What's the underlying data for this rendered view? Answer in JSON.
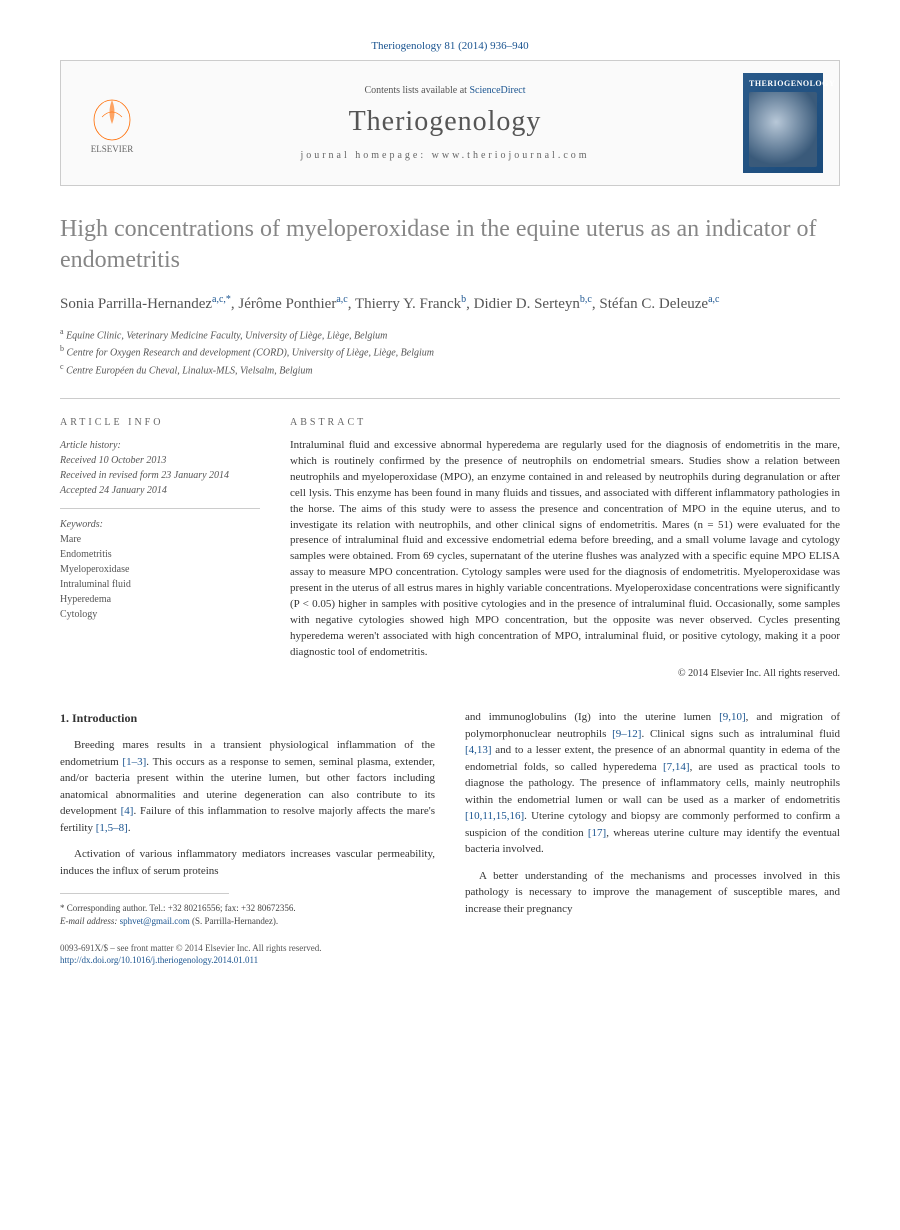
{
  "citation": "Theriogenology 81 (2014) 936–940",
  "header": {
    "contents_prefix": "Contents lists available at ",
    "contents_link": "ScienceDirect",
    "journal_name": "Theriogenology",
    "homepage_prefix": "journal homepage: ",
    "homepage_url": "www.theriojournal.com",
    "elsevier_brand": "ELSEVIER",
    "cover_title": "THERIOGENOLOGY"
  },
  "title": "High concentrations of myeloperoxidase in the equine uterus as an indicator of endometritis",
  "authors_html": "Sonia Parrilla-Hernandez|a,c,*|, Jérôme Ponthier|a,c|, Thierry Y. Franck|b|, Didier D. Serteyn|b,c|, Stéfan C. Deleuze|a,c|",
  "affiliations": [
    {
      "sup": "a",
      "text": "Equine Clinic, Veterinary Medicine Faculty, University of Liège, Liège, Belgium"
    },
    {
      "sup": "b",
      "text": "Centre for Oxygen Research and development (CORD), University of Liège, Liège, Belgium"
    },
    {
      "sup": "c",
      "text": "Centre Européen du Cheval, Linalux-MLS, Vielsalm, Belgium"
    }
  ],
  "article_info": {
    "heading": "article info",
    "history_label": "Article history:",
    "history": [
      "Received 10 October 2013",
      "Received in revised form 23 January 2014",
      "Accepted 24 January 2014"
    ],
    "keywords_label": "Keywords:",
    "keywords": [
      "Mare",
      "Endometritis",
      "Myeloperoxidase",
      "Intraluminal fluid",
      "Hyperedema",
      "Cytology"
    ]
  },
  "abstract": {
    "heading": "abstract",
    "text": "Intraluminal fluid and excessive abnormal hyperedema are regularly used for the diagnosis of endometritis in the mare, which is routinely confirmed by the presence of neutrophils on endometrial smears. Studies show a relation between neutrophils and myeloperoxidase (MPO), an enzyme contained in and released by neutrophils during degranulation or after cell lysis. This enzyme has been found in many fluids and tissues, and associated with different inflammatory pathologies in the horse. The aims of this study were to assess the presence and concentration of MPO in the equine uterus, and to investigate its relation with neutrophils, and other clinical signs of endometritis. Mares (n = 51) were evaluated for the presence of intraluminal fluid and excessive endometrial edema before breeding, and a small volume lavage and cytology samples were obtained. From 69 cycles, supernatant of the uterine flushes was analyzed with a specific equine MPO ELISA assay to measure MPO concentration. Cytology samples were used for the diagnosis of endometritis. Myeloperoxidase was present in the uterus of all estrus mares in highly variable concentrations. Myeloperoxidase concentrations were significantly (P < 0.05) higher in samples with positive cytologies and in the presence of intraluminal fluid. Occasionally, some samples with negative cytologies showed high MPO concentration, but the opposite was never observed. Cycles presenting hyperedema weren't associated with high concentration of MPO, intraluminal fluid, or positive cytology, making it a poor diagnostic tool of endometritis.",
    "copyright": "© 2014 Elsevier Inc. All rights reserved."
  },
  "introduction": {
    "heading": "1. Introduction",
    "p1_pre": "Breeding mares results in a transient physiological inflammation of the endometrium ",
    "p1_cite1": "[1–3]",
    "p1_mid": ". This occurs as a response to semen, seminal plasma, extender, and/or bacteria present within the uterine lumen, but other factors including anatomical abnormalities and uterine degeneration can also contribute to its development ",
    "p1_cite2": "[4]",
    "p1_mid2": ". Failure of this inflammation to resolve majorly affects the mare's fertility ",
    "p1_cite3": "[1,5–8]",
    "p1_end": ".",
    "p2": "Activation of various inflammatory mediators increases vascular permeability, induces the influx of serum proteins",
    "p3_pre": "and immunoglobulins (Ig) into the uterine lumen ",
    "p3_c1": "[9,10]",
    "p3_m1": ", and migration of polymorphonuclear neutrophils ",
    "p3_c2": "[9–12]",
    "p3_m2": ". Clinical signs such as intraluminal fluid ",
    "p3_c3": "[4,13]",
    "p3_m3": " and to a lesser extent, the presence of an abnormal quantity in edema of the endometrial folds, so called hyperedema ",
    "p3_c4": "[7,14]",
    "p3_m4": ", are used as practical tools to diagnose the pathology. The presence of inflammatory cells, mainly neutrophils within the endometrial lumen or wall can be used as a marker of endometritis ",
    "p3_c5": "[10,11,15,16]",
    "p3_m5": ". Uterine cytology and biopsy are commonly performed to confirm a suspicion of the condition ",
    "p3_c6": "[17]",
    "p3_m6": ", whereas uterine culture may identify the eventual bacteria involved.",
    "p4": "A better understanding of the mechanisms and processes involved in this pathology is necessary to improve the management of susceptible mares, and increase their pregnancy"
  },
  "footnote": {
    "corr_label": "* Corresponding author. Tel.: +32 80216556; fax: +32 80672356.",
    "email_label": "E-mail address:",
    "email": "sphvet@gmail.com",
    "email_who": "(S. Parrilla-Hernandez)."
  },
  "bottom": {
    "line1": "0093-691X/$ – see front matter © 2014 Elsevier Inc. All rights reserved.",
    "doi": "http://dx.doi.org/10.1016/j.theriogenology.2014.01.011"
  },
  "colors": {
    "link": "#1a5490",
    "title_gray": "#868686"
  }
}
